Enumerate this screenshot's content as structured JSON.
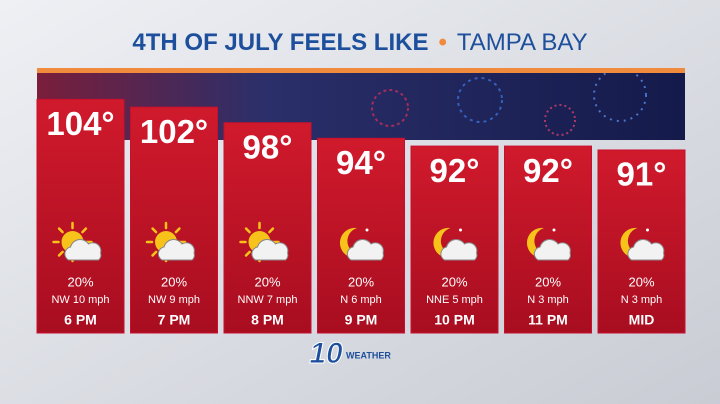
{
  "chart_data": {
    "type": "bar",
    "title": "4TH OF JULY FEELS LIKE",
    "subtitle": "TAMPA BAY",
    "categories": [
      "6 PM",
      "7 PM",
      "8 PM",
      "9 PM",
      "10 PM",
      "11 PM",
      "MID"
    ],
    "values": [
      104,
      102,
      98,
      94,
      92,
      92,
      91
    ],
    "value_labels": [
      "104°",
      "102°",
      "98°",
      "94°",
      "92°",
      "92°",
      "91°"
    ],
    "precipitation": [
      "20%",
      "20%",
      "20%",
      "20%",
      "20%",
      "20%",
      "20%"
    ],
    "wind": [
      "NW 10 mph",
      "NW 9 mph",
      "NNW 7 mph",
      "N 6 mph",
      "NNE 5 mph",
      "N 3 mph",
      "N 3 mph"
    ],
    "color": "#c8102e",
    "ylim": [
      44,
      110
    ]
  },
  "logo": {
    "number": "10",
    "text": "WEATHER"
  }
}
